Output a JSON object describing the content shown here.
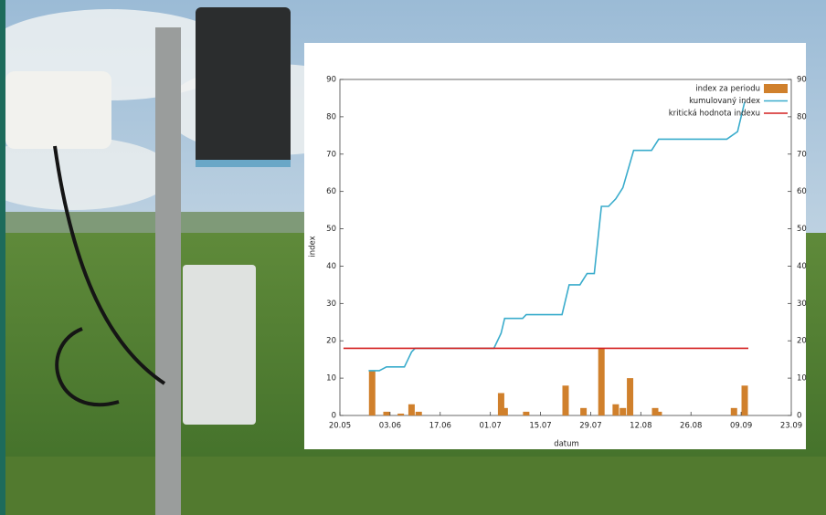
{
  "chart_data": {
    "type": "combo",
    "x_label": "datum",
    "y_label": "index",
    "xlim": [
      "20.05",
      "23.09"
    ],
    "xticks": [
      "20.05",
      "03.06",
      "17.06",
      "01.07",
      "15.07",
      "29.07",
      "12.08",
      "26.08",
      "09.09",
      "23.09"
    ],
    "ylim": [
      0,
      90
    ],
    "yticks": [
      0,
      10,
      20,
      30,
      40,
      50,
      60,
      70,
      80,
      90
    ],
    "legend": "top-right",
    "series": [
      {
        "name": "index za periodu",
        "type": "bar",
        "color": "#d0802c",
        "x": [
          "29.05",
          "02.06",
          "06.06",
          "09.06",
          "11.06",
          "04.07",
          "05.07",
          "11.07",
          "22.07",
          "27.07",
          "01.08",
          "05.08",
          "07.08",
          "09.08",
          "16.08",
          "17.08",
          "07.09",
          "10.09"
        ],
        "values": [
          12,
          1,
          0.5,
          3,
          1,
          6,
          2,
          1,
          8,
          2,
          18,
          3,
          2,
          10,
          2,
          1,
          2,
          8
        ]
      },
      {
        "name": "kumulovaný index",
        "type": "line",
        "color": "#3aaccc",
        "x": [
          "28.05",
          "31.05",
          "02.06",
          "07.06",
          "08.06",
          "09.06",
          "10.06",
          "02.07",
          "04.07",
          "05.07",
          "10.07",
          "11.07",
          "21.07",
          "23.07",
          "26.07",
          "28.07",
          "30.07",
          "01.08",
          "03.08",
          "05.08",
          "07.08",
          "10.08",
          "15.08",
          "17.08",
          "05.09",
          "08.09",
          "10.09"
        ],
        "values": [
          12,
          12,
          13,
          13,
          15,
          17,
          18,
          18,
          22,
          26,
          26,
          27,
          27,
          35,
          35,
          38,
          38,
          56,
          56,
          58,
          61,
          71,
          71,
          74,
          74,
          76,
          84
        ]
      },
      {
        "name": "kritická hodnota indexu",
        "type": "line",
        "color": "#d42020",
        "x": [
          "21.05",
          "11.09"
        ],
        "values": [
          18,
          18
        ]
      }
    ]
  }
}
